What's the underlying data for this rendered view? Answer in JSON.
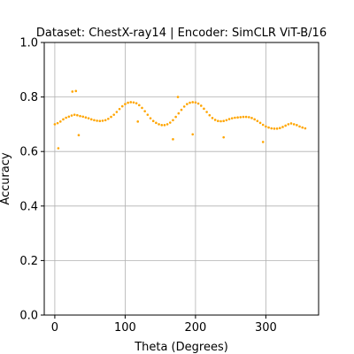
{
  "chart_data": {
    "type": "scatter",
    "title": "Dataset: ChestX-ray14 | Encoder: SimCLR ViT-B/16",
    "xlabel": "Theta (Degrees)",
    "ylabel": "Accuracy",
    "xlim": [
      -15,
      375
    ],
    "ylim": [
      0,
      1.0
    ],
    "xticks": [
      0,
      100,
      200,
      300
    ],
    "yticks": [
      0.0,
      0.2,
      0.4,
      0.6,
      0.8,
      1.0
    ],
    "xtick_labels": [
      "0",
      "100",
      "200",
      "300"
    ],
    "ytick_labels": [
      "0.0",
      "0.2",
      "0.4",
      "0.6",
      "0.8",
      "1.0"
    ],
    "grid": true,
    "marker_color": "#FFA500",
    "series": [
      {
        "x": [
          0,
          4,
          8,
          12,
          16,
          20,
          24,
          28,
          32,
          36,
          40,
          44,
          48,
          52,
          56,
          60,
          64,
          68,
          72,
          76,
          80,
          84,
          88,
          92,
          96,
          100,
          104,
          108,
          112,
          116,
          120,
          124,
          128,
          132,
          136,
          140,
          144,
          148,
          152,
          156,
          160,
          164,
          168,
          172,
          176,
          180,
          184,
          188,
          192,
          196,
          200,
          204,
          208,
          212,
          216,
          220,
          224,
          228,
          232,
          236,
          240,
          244,
          248,
          252,
          256,
          260,
          264,
          268,
          272,
          276,
          280,
          284,
          288,
          292,
          296,
          300,
          304,
          308,
          312,
          316,
          320,
          324,
          328,
          332,
          336,
          340,
          344,
          348,
          352,
          356,
          5,
          25,
          30,
          34,
          118,
          168,
          175,
          196,
          240,
          296
        ],
        "y": [
          0.7,
          0.704,
          0.71,
          0.718,
          0.724,
          0.728,
          0.732,
          0.735,
          0.733,
          0.73,
          0.728,
          0.725,
          0.722,
          0.718,
          0.715,
          0.713,
          0.712,
          0.713,
          0.715,
          0.72,
          0.727,
          0.735,
          0.745,
          0.756,
          0.766,
          0.774,
          0.779,
          0.781,
          0.78,
          0.777,
          0.77,
          0.76,
          0.748,
          0.735,
          0.722,
          0.712,
          0.705,
          0.7,
          0.697,
          0.697,
          0.7,
          0.706,
          0.715,
          0.727,
          0.74,
          0.753,
          0.765,
          0.774,
          0.779,
          0.781,
          0.78,
          0.776,
          0.768,
          0.757,
          0.745,
          0.733,
          0.723,
          0.716,
          0.712,
          0.711,
          0.712,
          0.715,
          0.719,
          0.722,
          0.724,
          0.725,
          0.726,
          0.727,
          0.727,
          0.726,
          0.723,
          0.718,
          0.712,
          0.705,
          0.698,
          0.692,
          0.688,
          0.685,
          0.684,
          0.684,
          0.686,
          0.69,
          0.695,
          0.7,
          0.703,
          0.7,
          0.697,
          0.692,
          0.688,
          0.685,
          0.612,
          0.82,
          0.822,
          0.66,
          0.71,
          0.645,
          0.8,
          0.663,
          0.652,
          0.635
        ]
      }
    ]
  }
}
